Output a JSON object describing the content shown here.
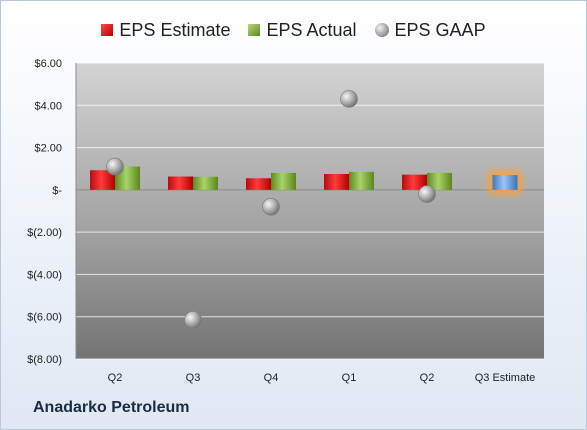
{
  "chart_data": {
    "type": "bar",
    "categories": [
      "Q2",
      "Q3",
      "Q4",
      "Q1",
      "Q2",
      "Q3 Estimate"
    ],
    "series": [
      {
        "name": "EPS Estimate",
        "values": [
          0.93,
          0.63,
          0.55,
          0.75,
          0.72,
          null
        ],
        "color": "#d42020"
      },
      {
        "name": "EPS Actual",
        "values": [
          1.1,
          0.62,
          0.8,
          0.85,
          0.8,
          0.7
        ],
        "color": "#7aa33a"
      },
      {
        "name": "EPS GAAP",
        "values": [
          1.1,
          -6.15,
          -0.8,
          4.3,
          -0.2,
          null
        ],
        "color": "#999999"
      }
    ],
    "highlight": {
      "category": "Q3 Estimate",
      "color": "#6aa0dc",
      "glow": "#f5a33c"
    },
    "yticks": [
      "$6.00",
      "$4.00",
      "$2.00",
      "$-",
      "$(2.00)",
      "$(4.00)",
      "$(6.00)",
      "$(8.00)"
    ],
    "ylim": [
      -8,
      6
    ],
    "grid": true,
    "legend_position": "top"
  },
  "legend": {
    "estimate": "EPS Estimate",
    "actual": "EPS Actual",
    "gaap": "EPS GAAP"
  },
  "footer": "Anadarko Petroleum"
}
